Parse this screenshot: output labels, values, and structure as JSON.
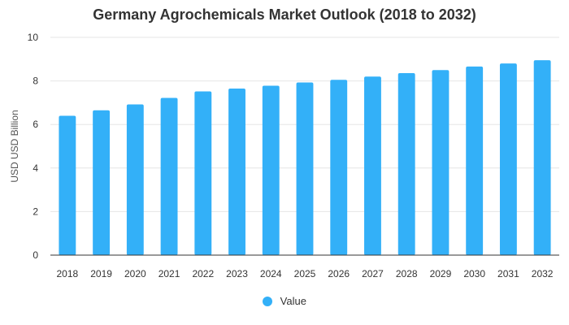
{
  "chart_data": {
    "type": "bar",
    "title": "Germany Agrochemicals Market Outlook (2018 to 2032)",
    "ylabel": "USD USD Billion",
    "xlabel": "",
    "categories": [
      "2018",
      "2019",
      "2020",
      "2021",
      "2022",
      "2023",
      "2024",
      "2025",
      "2026",
      "2027",
      "2028",
      "2029",
      "2030",
      "2031",
      "2032"
    ],
    "series": [
      {
        "name": "Value",
        "values": [
          6.4,
          6.65,
          6.92,
          7.22,
          7.52,
          7.65,
          7.78,
          7.93,
          8.05,
          8.2,
          8.36,
          8.5,
          8.66,
          8.8,
          8.95
        ]
      }
    ],
    "ylim": [
      0,
      10
    ],
    "yticks": [
      0,
      2,
      4,
      6,
      8,
      10
    ],
    "grid": true,
    "legend_position": "bottom",
    "colors": {
      "bar": "#33b0f8",
      "grid": "#e6e6e6",
      "axis": "#333333"
    }
  }
}
